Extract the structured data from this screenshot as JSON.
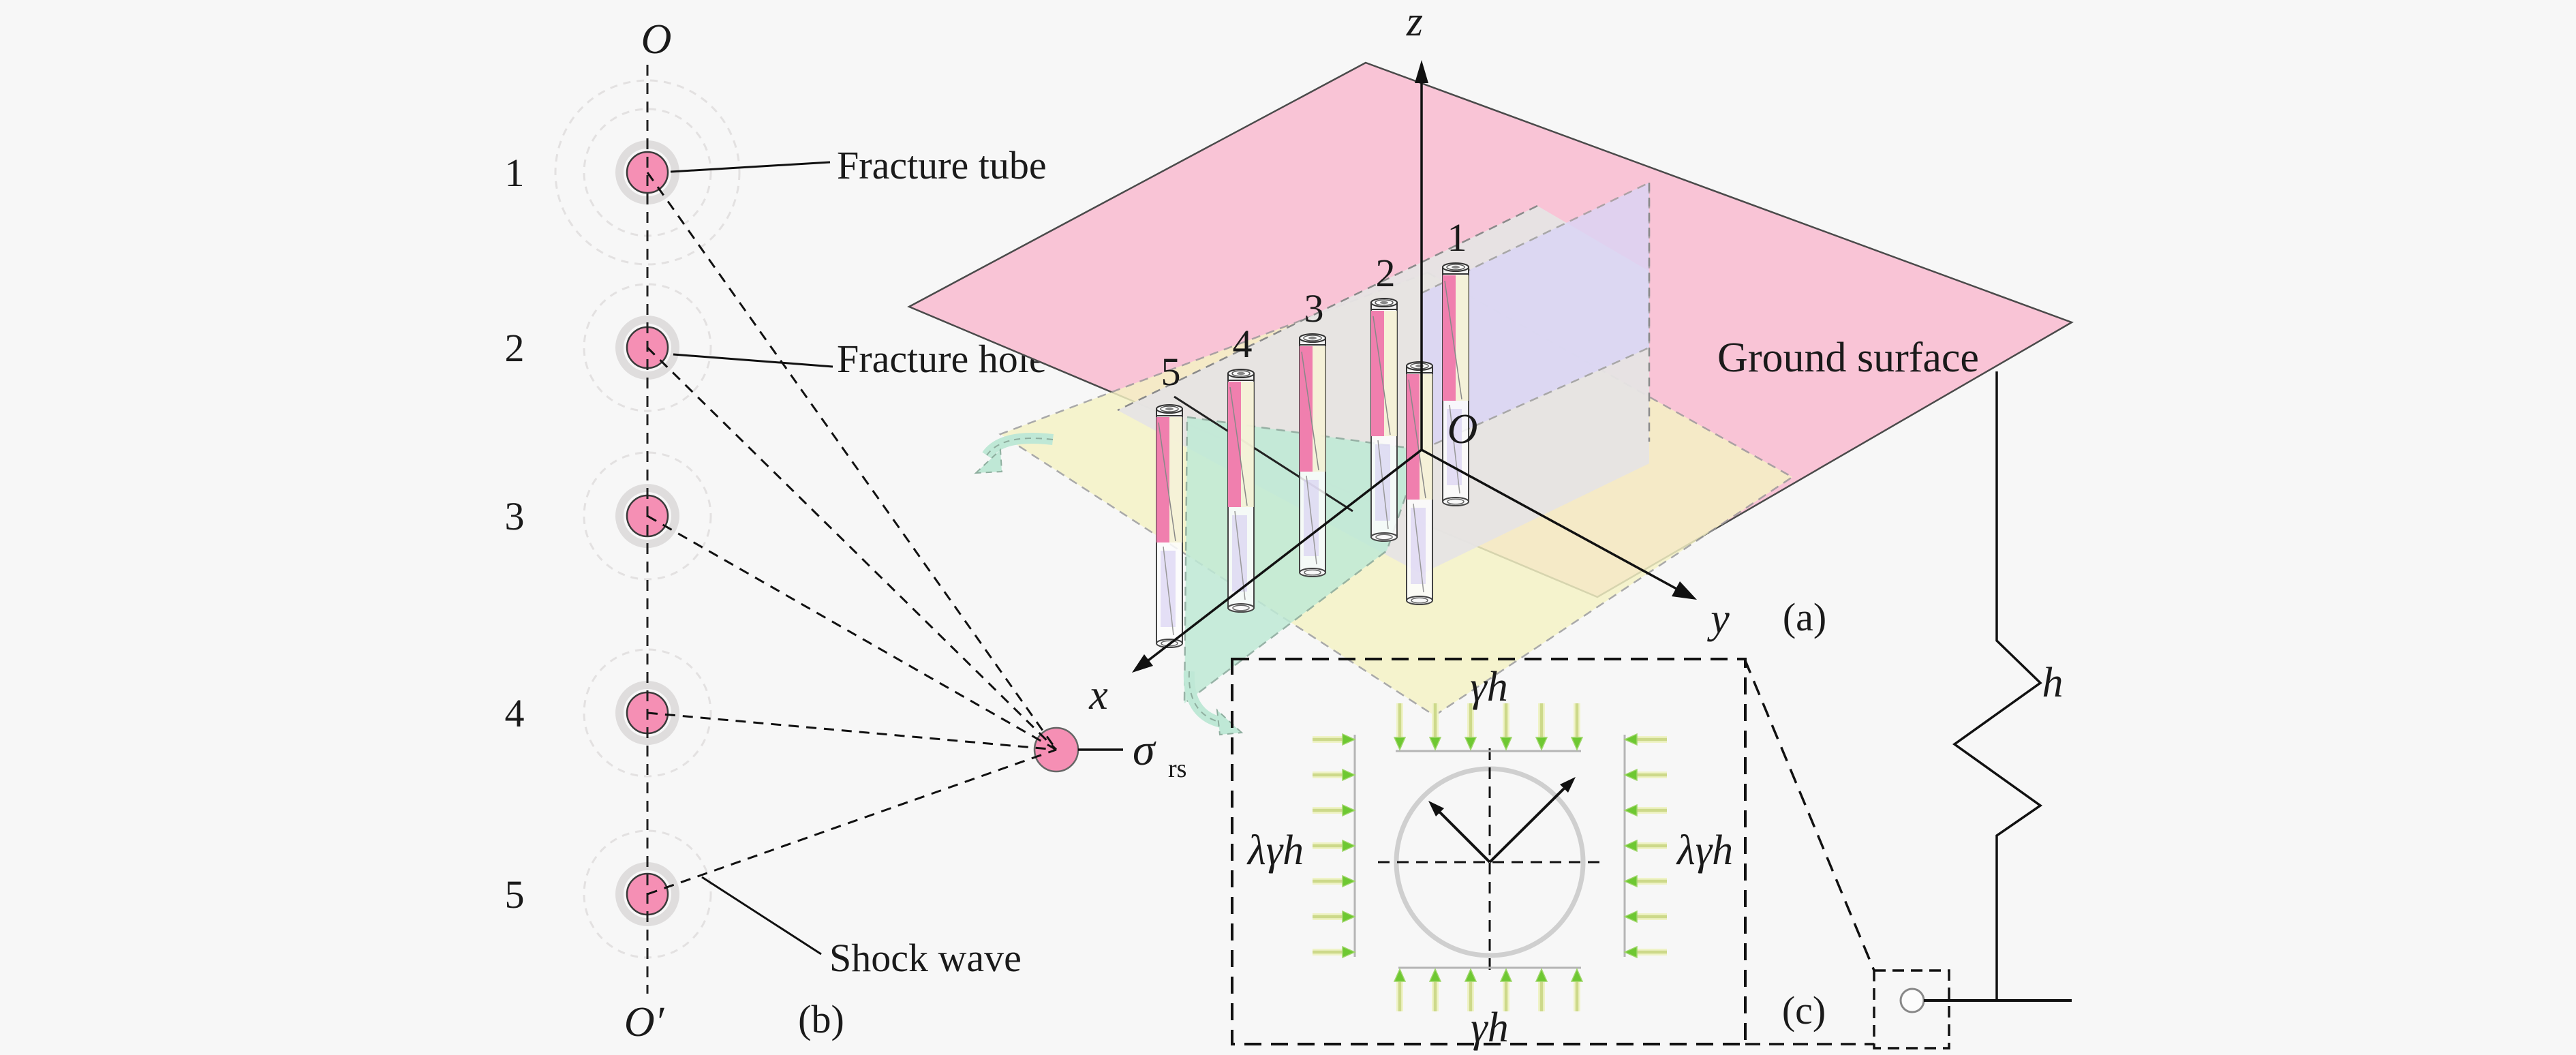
{
  "background": "#f7f7f7",
  "panel_a": {
    "tag": "(a)",
    "ground_surface_label": "Ground surface",
    "origin_label": "O",
    "axis_x": "x",
    "axis_y": "y",
    "axis_z": "z",
    "depth_label": "h",
    "tube_numbers": [
      "1",
      "2",
      "3",
      "4",
      "5"
    ],
    "colors": {
      "ground_plane": "#f9c4d6",
      "notch_floor": "#e6e4e4",
      "deep_plane": "#f5f3c4",
      "yz_plane": "#dad5f6",
      "xz_plane": "#bfead6",
      "tube_pink": "#f07fae",
      "tube_pale": "#f2eecb",
      "tube_lavender": "#cfc7f1"
    }
  },
  "panel_b": {
    "tag": "(b)",
    "top_label": "O",
    "bottom_label": "O′",
    "hole_numbers": [
      "1",
      "2",
      "3",
      "4",
      "5"
    ],
    "fracture_tube_label": "Fracture tube",
    "fracture_hole_label": "Fracture hole",
    "shock_wave_label": "Shock wave",
    "sigma_label": "σ",
    "sigma_sub": "rs",
    "colors": {
      "hole_fill": "#f58fb4",
      "ring": "#dfdddd",
      "shock_ring": "#e3e1e1"
    }
  },
  "panel_c": {
    "tag": "(c)",
    "top_load_label": "γh",
    "bottom_load_label": "γh",
    "left_load_label": "λγh",
    "right_load_label": "λγh",
    "colors": {
      "load_arrow_head": "#6ec832",
      "load_arrow_shaft": "#cdd98a",
      "hole_circle": "#cfcfcf"
    }
  }
}
